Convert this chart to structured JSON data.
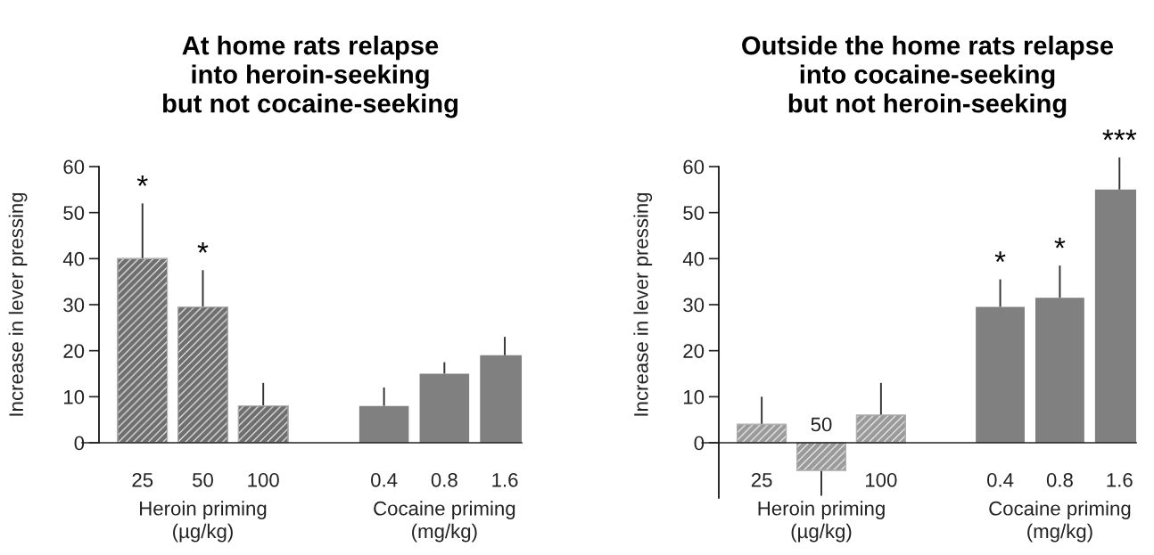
{
  "chart_data": [
    {
      "type": "bar",
      "title": "At home rats relapse\ninto heroin-seeking\nbut not cocaine-seeking",
      "ylabel": "Increase in lever pressing",
      "categories": [
        "25",
        "50",
        "100",
        null,
        "0.4",
        "0.8",
        "1.6"
      ],
      "series": [
        {
          "color": "#6e6e6e",
          "values": [
            40,
            29.5,
            8,
            null,
            null,
            null,
            null
          ],
          "errors": [
            [
              40,
              52
            ],
            [
              29.5,
              37.5
            ],
            [
              8,
              13
            ],
            null,
            null,
            null,
            null
          ]
        },
        {
          "color": "#808080",
          "values": [
            null,
            null,
            null,
            null,
            8,
            15,
            19
          ],
          "errors": [
            null,
            null,
            null,
            null,
            [
              8,
              12
            ],
            [
              15,
              17.5
            ],
            [
              19,
              23
            ]
          ]
        }
      ],
      "ylim": [
        0,
        60
      ],
      "yticks": [
        0,
        10,
        20,
        30,
        40,
        50,
        60
      ],
      "grid": false,
      "annotations": [
        {
          "text": "*",
          "x": "25",
          "y": 52
        },
        {
          "text": "*",
          "x": "50",
          "y": 37.5
        },
        "Heroin priming\n(µg/kg)",
        "Cocaine priming\n(mg/kg)"
      ]
    },
    {
      "type": "bar",
      "title": "Outside the home rats relapse\ninto cocaine-seeking\nbut not heroin-seeking",
      "ylabel": "Increase in lever pressing",
      "categories": [
        "25",
        "50",
        "100",
        null,
        "0.4",
        "0.8",
        "1.6"
      ],
      "series": [
        {
          "color": "#9a9a9a",
          "values": [
            4,
            -6,
            6,
            null,
            null,
            null,
            null
          ],
          "errors": [
            [
              4,
              10
            ],
            [
              -11.5,
              -6
            ],
            [
              6,
              13
            ],
            null,
            null,
            null,
            null
          ]
        },
        {
          "color": "#808080",
          "values": [
            null,
            null,
            null,
            null,
            29.5,
            31.5,
            55
          ],
          "errors": [
            null,
            null,
            null,
            null,
            [
              29.5,
              35.5
            ],
            [
              31.5,
              38.5
            ],
            [
              55,
              62
            ]
          ]
        }
      ],
      "ylim": [
        -12,
        60
      ],
      "yticks": [
        0,
        10,
        20,
        30,
        40,
        50,
        60
      ],
      "grid": false,
      "annotations": [
        {
          "text": "*",
          "x": "0.4",
          "y": 35.5
        },
        {
          "text": "*",
          "x": "0.8",
          "y": 38.5
        },
        {
          "text": "***",
          "x": "1.6",
          "y": 62
        },
        "Heroin priming\n(µg/kg)",
        "Cocaine priming\n(mg/kg)"
      ]
    }
  ]
}
